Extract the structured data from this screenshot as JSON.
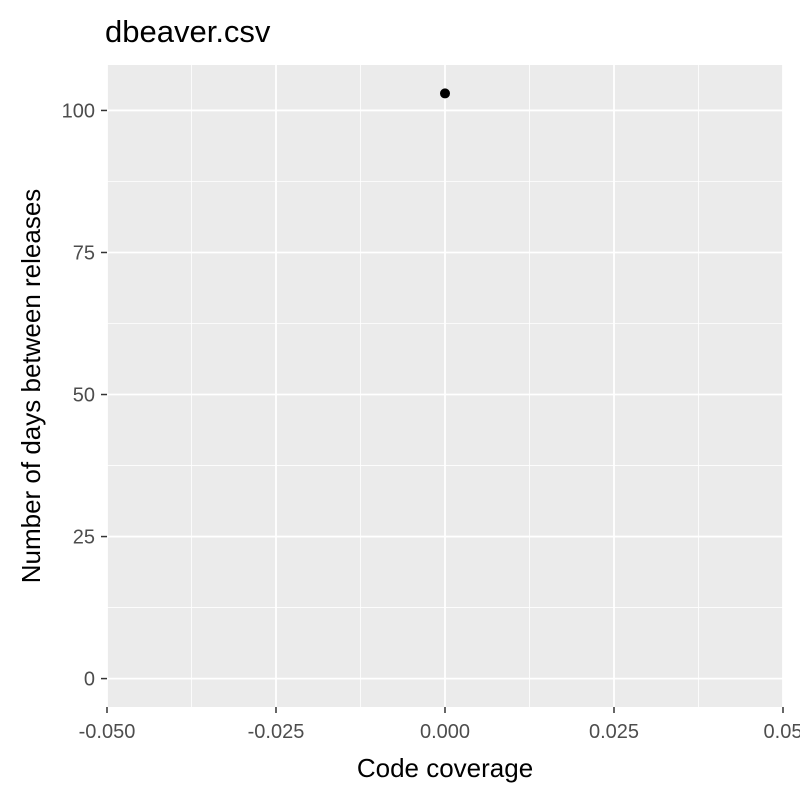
{
  "chart_data": {
    "type": "scatter",
    "title": "dbeaver.csv",
    "xlabel": "Code coverage",
    "ylabel": "Number of days between releases",
    "xlim": [
      -0.05,
      0.05
    ],
    "ylim": [
      -5,
      108
    ],
    "x_ticks": [
      -0.05,
      -0.025,
      0,
      0.025,
      0.05
    ],
    "x_tick_labels": [
      "-0.050",
      "-0.025",
      "0.000",
      "0.025",
      "0.05"
    ],
    "y_ticks": [
      0,
      25,
      50,
      75,
      100
    ],
    "y_tick_labels": [
      "0",
      "25",
      "50",
      "75",
      "100"
    ],
    "grid": true,
    "series": [
      {
        "points": [
          {
            "x": 0.0,
            "y": 103
          }
        ]
      }
    ],
    "colors": {
      "panel": "#ebebeb",
      "grid": "#ffffff",
      "point": "#000000"
    }
  }
}
